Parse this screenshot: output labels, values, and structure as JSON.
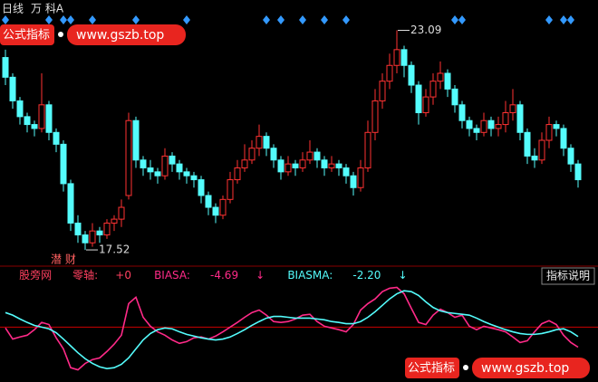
{
  "watermark": {
    "label": "公式指标",
    "url": "www.gszb.top"
  },
  "help_button": "指标说明",
  "chart_data": [
    {
      "type": "candlestick",
      "period": "日线",
      "title": "万 科A",
      "annotation": "潜 财",
      "up_color": "#ff3232",
      "down_color": "#54fcfc",
      "signal_color": "#3399ff",
      "ylim": [
        17.2,
        23.4
      ],
      "open": [
        22.4,
        21.9,
        21.3,
        20.9,
        20.7,
        20.6,
        21.2,
        20.5,
        20.2,
        19.2,
        18.2,
        17.9,
        17.7,
        18.0,
        17.9,
        18.2,
        18.3,
        18.9,
        20.8,
        19.8,
        19.6,
        19.5,
        19.4,
        19.9,
        19.7,
        19.5,
        19.4,
        19.3,
        18.9,
        18.6,
        18.4,
        18.8,
        19.3,
        19.6,
        19.8,
        20.1,
        20.4,
        20.1,
        19.8,
        19.5,
        19.7,
        19.6,
        19.8,
        20.0,
        19.8,
        19.6,
        19.7,
        19.6,
        19.4,
        19.1,
        19.6,
        20.5,
        21.3,
        21.8,
        22.2,
        22.6,
        22.2,
        21.7,
        21.0,
        21.4,
        21.8,
        22.0,
        21.6,
        21.2,
        20.8,
        20.6,
        20.5,
        20.8,
        20.6,
        20.7,
        21.0,
        21.2,
        20.5,
        19.9,
        19.8,
        20.3,
        20.7,
        20.6,
        20.1,
        19.7
      ],
      "high": [
        22.6,
        22.0,
        21.4,
        21.0,
        20.8,
        22.0,
        21.3,
        20.6,
        20.3,
        19.3,
        18.4,
        18.0,
        18.2,
        18.1,
        18.3,
        18.4,
        18.8,
        21.0,
        20.9,
        19.9,
        19.8,
        19.6,
        20.1,
        20.0,
        19.8,
        19.6,
        19.5,
        19.4,
        19.0,
        18.7,
        18.9,
        19.5,
        19.8,
        20.2,
        20.3,
        20.7,
        20.5,
        20.2,
        19.9,
        19.9,
        19.8,
        20.0,
        20.3,
        20.1,
        19.9,
        19.9,
        19.8,
        19.7,
        19.5,
        19.8,
        20.8,
        21.6,
        22.0,
        22.5,
        23.09,
        22.7,
        22.3,
        21.8,
        21.6,
        22.0,
        22.3,
        22.1,
        21.7,
        21.3,
        20.9,
        20.7,
        21.0,
        20.9,
        20.9,
        21.3,
        21.6,
        21.3,
        20.6,
        20.1,
        20.5,
        20.9,
        20.8,
        20.7,
        20.2,
        19.8
      ],
      "low": [
        21.7,
        21.1,
        20.7,
        20.5,
        20.4,
        20.5,
        20.3,
        20.0,
        19.0,
        18.0,
        17.7,
        17.52,
        17.6,
        17.7,
        17.8,
        18.0,
        18.1,
        18.8,
        19.6,
        19.4,
        19.3,
        19.2,
        19.3,
        19.5,
        19.3,
        19.2,
        19.1,
        18.7,
        18.4,
        18.2,
        18.3,
        18.7,
        19.2,
        19.5,
        19.7,
        19.9,
        19.9,
        19.6,
        19.3,
        19.4,
        19.4,
        19.5,
        19.7,
        19.6,
        19.4,
        19.5,
        19.4,
        19.2,
        18.9,
        19.0,
        19.5,
        20.3,
        21.1,
        21.6,
        22.0,
        21.9,
        21.5,
        20.7,
        20.9,
        21.2,
        21.6,
        21.4,
        21.0,
        20.6,
        20.4,
        20.3,
        20.4,
        20.4,
        20.4,
        20.5,
        20.8,
        20.3,
        19.7,
        19.6,
        19.7,
        20.1,
        20.4,
        19.9,
        19.5,
        19.1
      ],
      "close": [
        21.9,
        21.3,
        20.9,
        20.7,
        20.6,
        21.2,
        20.5,
        20.2,
        19.2,
        18.2,
        17.9,
        17.7,
        18.0,
        17.9,
        18.2,
        18.3,
        18.6,
        20.8,
        19.8,
        19.6,
        19.5,
        19.4,
        19.9,
        19.7,
        19.5,
        19.4,
        19.3,
        18.9,
        18.6,
        18.4,
        18.8,
        19.3,
        19.6,
        19.8,
        20.1,
        20.4,
        20.1,
        19.8,
        19.5,
        19.7,
        19.6,
        19.8,
        20.0,
        19.8,
        19.6,
        19.7,
        19.6,
        19.4,
        19.1,
        19.6,
        20.5,
        21.3,
        21.8,
        22.2,
        22.6,
        22.2,
        21.7,
        21.0,
        21.4,
        21.8,
        22.0,
        21.6,
        21.2,
        20.8,
        20.6,
        20.5,
        20.8,
        20.6,
        20.7,
        21.0,
        21.2,
        20.5,
        19.9,
        19.8,
        20.3,
        20.7,
        20.6,
        20.1,
        19.7,
        19.3
      ],
      "signals": [
        0,
        6,
        8,
        9,
        12,
        18,
        25,
        36,
        38,
        41,
        44,
        47,
        62,
        63,
        75,
        77,
        78
      ],
      "high_mark": 54,
      "low_mark": 11
    },
    {
      "type": "line",
      "source": "股旁网",
      "zero_line": {
        "name": "零轴:",
        "value": 0,
        "label": "+0",
        "color": "#cc0000"
      },
      "ylim": [
        -12,
        13
      ],
      "series": [
        {
          "name": "BIASA:",
          "color": "#ff2a88",
          "trend": "↓",
          "values": [
            -0.2,
            -2.8,
            -2.3,
            -1.9,
            -0.6,
            1.1,
            0.6,
            -2.5,
            -5.1,
            -9.5,
            -10.0,
            -8.5,
            -7.6,
            -7.2,
            -5.7,
            -4.0,
            -1.9,
            5.5,
            7.0,
            2.3,
            0.2,
            -1.1,
            -1.9,
            -3.0,
            -3.8,
            -3.4,
            -2.5,
            -2.3,
            -2.8,
            -2.1,
            -1.1,
            0.0,
            1.1,
            2.3,
            3.4,
            4.0,
            2.8,
            1.3,
            1.1,
            1.3,
            1.9,
            2.8,
            3.0,
            1.3,
            0.2,
            -0.2,
            -0.6,
            -1.1,
            0.6,
            4.0,
            5.5,
            6.6,
            8.3,
            9.1,
            9.3,
            7.8,
            4.4,
            1.1,
            0.6,
            2.8,
            4.2,
            3.4,
            2.3,
            2.8,
            0.2,
            -0.6,
            0.2,
            -0.2,
            -0.6,
            -1.1,
            -2.3,
            -3.6,
            -3.2,
            -1.1,
            0.8,
            1.5,
            0.6,
            -1.9,
            -3.6,
            -4.69
          ]
        },
        {
          "name": "BIASMA:",
          "color": "#54fcfc",
          "trend": "↓",
          "values": [
            3.4,
            2.8,
            1.9,
            1.1,
            0.4,
            0.0,
            -0.4,
            -1.3,
            -2.8,
            -4.4,
            -6.0,
            -7.4,
            -8.5,
            -9.3,
            -9.7,
            -9.5,
            -8.7,
            -7.2,
            -5.1,
            -3.0,
            -1.5,
            -0.6,
            -0.2,
            -0.4,
            -1.1,
            -1.7,
            -2.1,
            -2.5,
            -2.8,
            -3.0,
            -2.8,
            -2.3,
            -1.5,
            -0.6,
            0.4,
            1.3,
            2.1,
            2.5,
            2.5,
            2.3,
            2.1,
            2.1,
            2.1,
            1.9,
            1.7,
            1.3,
            1.1,
            0.8,
            0.8,
            1.3,
            2.3,
            3.6,
            5.1,
            6.6,
            7.8,
            8.5,
            8.3,
            7.4,
            5.9,
            4.6,
            3.8,
            3.4,
            3.2,
            3.0,
            2.8,
            2.1,
            1.3,
            0.6,
            0.0,
            -0.6,
            -1.1,
            -1.5,
            -1.7,
            -1.7,
            -1.5,
            -1.1,
            -0.6,
            -0.4,
            -1.1,
            -2.2
          ],
          "value_labels": [
            null,
            null,
            null,
            null,
            null,
            null,
            null,
            null,
            null,
            null,
            null,
            null,
            null,
            null,
            null,
            null,
            null,
            null,
            null,
            null,
            null,
            null,
            null,
            null,
            null,
            null,
            null,
            null,
            null,
            null,
            null,
            null,
            null,
            null,
            null,
            null,
            null,
            null,
            null,
            null,
            null,
            null,
            null,
            null,
            null,
            null,
            null,
            null,
            null,
            null,
            null,
            null,
            null,
            null,
            null,
            null,
            null,
            null,
            null,
            null,
            null,
            null,
            null,
            null,
            null,
            null,
            null,
            null,
            null,
            null,
            null,
            null,
            null,
            null,
            null,
            null,
            null,
            null,
            null,
            "-2.20"
          ]
        }
      ]
    }
  ]
}
